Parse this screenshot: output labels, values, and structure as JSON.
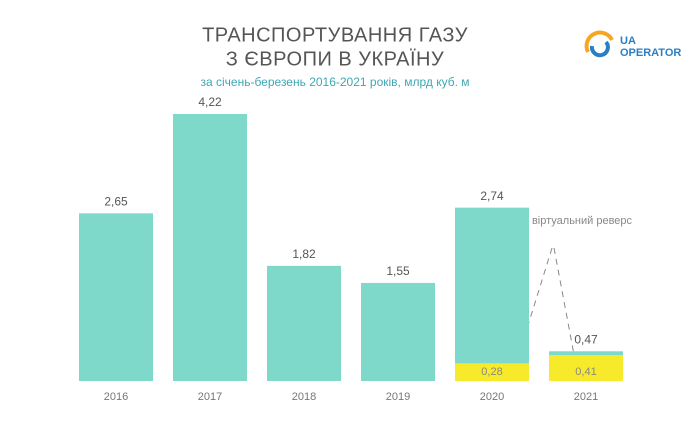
{
  "chart_data": {
    "type": "bar",
    "title": [
      "ТРАНСПОРТУВАННЯ ГАЗУ",
      "З ЄВРОПИ В УКРАЇНУ"
    ],
    "subtitle": "за січень-березень 2016-2021 років, млрд куб. м",
    "logo": [
      "UA",
      "OPERATOR"
    ],
    "categories": [
      "2016",
      "2017",
      "2018",
      "2019",
      "2020",
      "2021"
    ],
    "series": [
      {
        "color": "#7fd9cb",
        "values": [
          2.65,
          4.22,
          1.82,
          1.55,
          2.74,
          0.47
        ],
        "value_labels": [
          "2,65",
          "4,22",
          "1,82",
          "1,55",
          "2,74",
          "0,47"
        ]
      },
      {
        "name": "віртуальний реверс",
        "color": "#f7ea2a",
        "values": [
          null,
          null,
          null,
          null,
          0.28,
          0.41
        ],
        "value_labels": [
          null,
          null,
          null,
          null,
          "0,28",
          "0,41"
        ]
      }
    ]
  }
}
